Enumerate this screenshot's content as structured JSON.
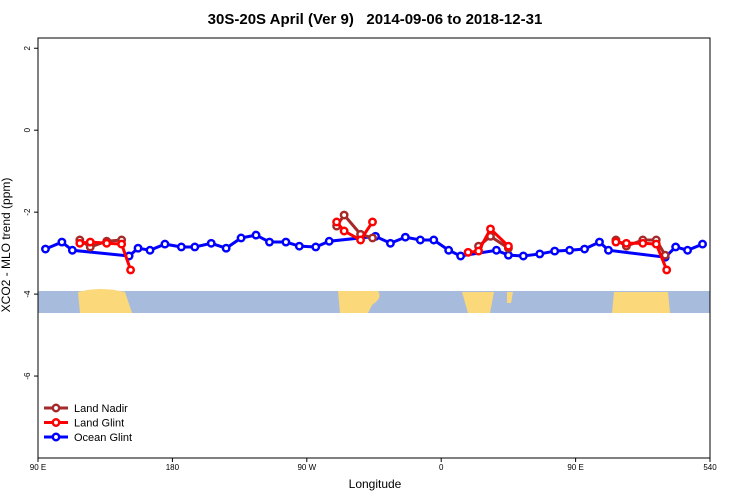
{
  "chart_data": {
    "type": "line",
    "title": "30S-20S April (Ver 9)   2014-09-06 to 2018-12-31",
    "x_label": "Longitude",
    "y_label": "XCO2 - MLO trend (ppm)",
    "xlim": [
      90,
      540
    ],
    "xticks": [
      {
        "value": 90,
        "label": "90 E"
      },
      180,
      {
        "value": 270,
        "label": "90 W"
      },
      {
        "value": 360,
        "label": "0"
      },
      {
        "value": 450,
        "label": "90 E"
      },
      540
    ],
    "ylim": [
      -8,
      2.25
    ],
    "yticks": [
      2,
      0,
      -2,
      -4,
      -6
    ],
    "legend": "bottom-left",
    "series": [
      {
        "name": "Land Nadir",
        "color": "#a52a2a",
        "x": [
          118,
          125,
          136,
          146,
          null,
          290,
          295,
          306,
          314,
          null,
          385,
          393,
          405,
          null,
          477,
          484,
          495,
          504,
          510
        ],
        "values": [
          -2.68,
          -2.85,
          -2.71,
          -2.68,
          null,
          -2.34,
          -2.07,
          -2.54,
          -2.63,
          null,
          -2.83,
          -2.59,
          -2.88,
          null,
          -2.68,
          -2.83,
          -2.68,
          -2.68,
          -3.05
        ]
      },
      {
        "name": "Land Glint",
        "color": "#ff0000",
        "x": [
          118,
          125,
          136,
          146,
          152,
          null,
          290,
          295,
          306,
          314,
          null,
          378,
          385,
          393,
          405,
          null,
          477,
          484,
          495,
          504,
          511
        ],
        "values": [
          -2.76,
          -2.73,
          -2.76,
          -2.78,
          -3.41,
          null,
          -2.24,
          -2.46,
          -2.68,
          -2.24,
          null,
          -2.98,
          -2.95,
          -2.41,
          -2.83,
          null,
          -2.73,
          -2.76,
          -2.76,
          -2.78,
          -3.41
        ]
      },
      {
        "name": "Ocean Glint",
        "color": "#0000ff",
        "x": [
          95,
          106,
          113,
          151,
          157,
          165,
          175,
          186,
          195,
          206,
          216,
          226,
          236,
          245,
          256,
          265,
          276,
          285,
          316,
          326,
          336,
          346,
          355,
          365,
          373,
          397,
          405,
          415,
          426,
          436,
          446,
          456,
          466,
          472,
          510,
          517,
          525,
          535
        ],
        "values": [
          -2.9,
          -2.73,
          -2.93,
          -3.07,
          -2.88,
          -2.93,
          -2.78,
          -2.85,
          -2.85,
          -2.76,
          -2.88,
          -2.63,
          -2.56,
          -2.73,
          -2.73,
          -2.83,
          -2.85,
          -2.71,
          -2.59,
          -2.76,
          -2.61,
          -2.68,
          -2.68,
          -2.93,
          -3.07,
          -2.93,
          -3.05,
          -3.07,
          -3.02,
          -2.95,
          -2.93,
          -2.9,
          -2.73,
          -2.93,
          -3.1,
          -2.85,
          -2.93,
          -2.78
        ]
      }
    ]
  }
}
